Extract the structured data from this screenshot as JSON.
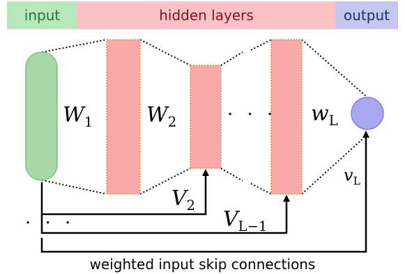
{
  "header": {
    "input_label": "input",
    "hidden_label": "hidden layers",
    "output_label": "output",
    "colors": {
      "input_bg": "#b9e6bd",
      "input_text": "#1f7a2a",
      "hidden_bg": "#fbc1c4",
      "hidden_text": "#8a1020",
      "output_bg": "#c4c8ee",
      "output_text": "#1e2a7a"
    }
  },
  "diagram": {
    "weights": {
      "w1": {
        "base": "W",
        "sub": "1"
      },
      "w2": {
        "base": "W",
        "sub": "2"
      },
      "wL": {
        "base": "w",
        "sub": "L"
      }
    },
    "skip_weights": {
      "v2": {
        "base": "V",
        "sub": "2"
      },
      "vLminus1": {
        "base": "V",
        "sub": "L−1"
      },
      "vL": {
        "base": "v",
        "sub": "L"
      }
    },
    "ellipsis_middle": "· · ·",
    "ellipsis_bottom": "· · ·",
    "caption": "weighted input skip connections",
    "colors": {
      "input_fill": "#a8d8a8",
      "input_stroke": "#7cc47c",
      "hidden_fill": "#fba8a8",
      "hidden_stroke": "#f08030",
      "output_fill": "#a8a8f0",
      "output_stroke": "#8080e0"
    }
  }
}
